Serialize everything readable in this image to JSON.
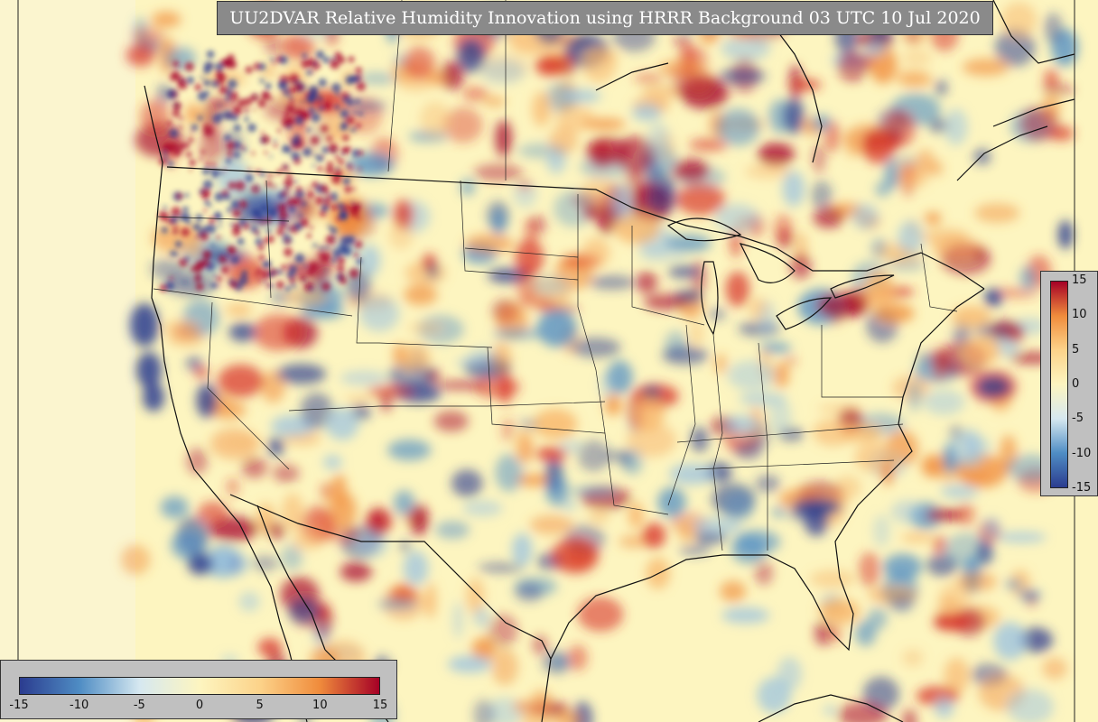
{
  "title": "UU2DVAR Relative Humidity Innovation using HRRR Background 03 UTC 10 Jul 2020",
  "colorbar": {
    "ticks_horizontal": [
      "-15",
      "-10",
      "-5",
      "0",
      "5",
      "10",
      "15"
    ],
    "ticks_vertical": [
      "15",
      "10",
      "5",
      "0",
      "-5",
      "-10",
      "-15"
    ],
    "range": [
      -15,
      15
    ]
  },
  "colors": {
    "background": "#fdf5c0",
    "negative_strong": "#2b3c8f",
    "negative_mid": "#4f8dc4",
    "neutral": "#fdf5c0",
    "positive_mid": "#f08c3c",
    "positive_strong": "#a50026"
  }
}
